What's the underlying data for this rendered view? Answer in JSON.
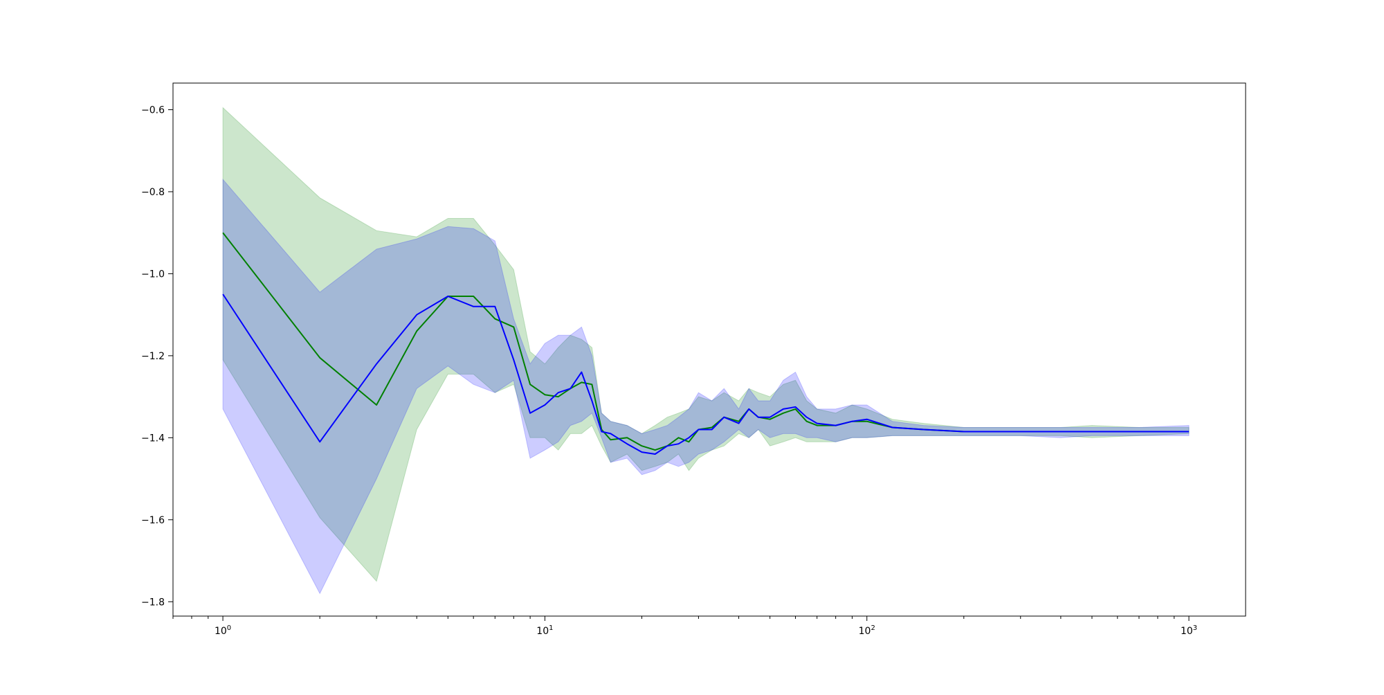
{
  "chart_data": {
    "type": "line",
    "title": "",
    "xlabel": "",
    "ylabel": "",
    "xscale": "log",
    "xlim": [
      0.7,
      1500
    ],
    "ylim": [
      -1.835,
      -0.535
    ],
    "grid": false,
    "legend": "none",
    "x_major_ticks": [
      {
        "value": 1,
        "base": "10",
        "exp": "0"
      },
      {
        "value": 10,
        "base": "10",
        "exp": "1"
      },
      {
        "value": 100,
        "base": "10",
        "exp": "2"
      },
      {
        "value": 1000,
        "base": "10",
        "exp": "3"
      }
    ],
    "y_ticks": [
      {
        "value": -0.6,
        "label": "−0.6"
      },
      {
        "value": -0.8,
        "label": "−0.8"
      },
      {
        "value": -1.0,
        "label": "−1.0"
      },
      {
        "value": -1.2,
        "label": "−1.2"
      },
      {
        "value": -1.4,
        "label": "−1.4"
      },
      {
        "value": -1.6,
        "label": "−1.6"
      },
      {
        "value": -1.8,
        "label": "−1.8"
      }
    ],
    "series": [
      {
        "color": "#008000",
        "band_color": "#008000",
        "band_opacity": 0.2,
        "x": [
          1,
          2,
          3,
          4,
          5,
          6,
          7,
          8,
          9,
          10,
          11,
          12,
          13,
          14,
          15,
          16,
          18,
          20,
          22,
          24,
          26,
          28,
          30,
          33,
          36,
          40,
          43,
          46,
          50,
          55,
          60,
          65,
          70,
          80,
          90,
          100,
          120,
          150,
          200,
          300,
          400,
          500,
          700,
          1000
        ],
        "y": [
          -0.9,
          -1.205,
          -1.32,
          -1.14,
          -1.055,
          -1.055,
          -1.11,
          -1.13,
          -1.27,
          -1.295,
          -1.3,
          -1.28,
          -1.265,
          -1.27,
          -1.38,
          -1.405,
          -1.4,
          -1.42,
          -1.43,
          -1.42,
          -1.4,
          -1.41,
          -1.38,
          -1.375,
          -1.35,
          -1.36,
          -1.33,
          -1.35,
          -1.355,
          -1.34,
          -1.33,
          -1.36,
          -1.37,
          -1.37,
          -1.36,
          -1.36,
          -1.375,
          -1.38,
          -1.385,
          -1.385,
          -1.385,
          -1.385,
          -1.385,
          -1.385
        ],
        "lower": [
          -1.21,
          -1.595,
          -1.75,
          -1.38,
          -1.245,
          -1.245,
          -1.29,
          -1.27,
          -1.4,
          -1.4,
          -1.43,
          -1.39,
          -1.39,
          -1.37,
          -1.42,
          -1.46,
          -1.44,
          -1.48,
          -1.47,
          -1.46,
          -1.44,
          -1.48,
          -1.45,
          -1.43,
          -1.42,
          -1.39,
          -1.4,
          -1.38,
          -1.42,
          -1.41,
          -1.4,
          -1.41,
          -1.41,
          -1.41,
          -1.4,
          -1.4,
          -1.395,
          -1.395,
          -1.395,
          -1.395,
          -1.395,
          -1.4,
          -1.395,
          -1.39
        ],
        "upper": [
          -0.595,
          -0.815,
          -0.895,
          -0.91,
          -0.865,
          -0.865,
          -0.93,
          -0.99,
          -1.19,
          -1.22,
          -1.18,
          -1.15,
          -1.16,
          -1.18,
          -1.34,
          -1.36,
          -1.37,
          -1.39,
          -1.37,
          -1.35,
          -1.34,
          -1.33,
          -1.3,
          -1.31,
          -1.29,
          -1.31,
          -1.28,
          -1.29,
          -1.3,
          -1.27,
          -1.26,
          -1.31,
          -1.33,
          -1.34,
          -1.32,
          -1.33,
          -1.355,
          -1.365,
          -1.375,
          -1.375,
          -1.375,
          -1.37,
          -1.375,
          -1.375
        ]
      },
      {
        "color": "#0000ff",
        "band_color": "#0000ff",
        "band_opacity": 0.2,
        "x": [
          1,
          2,
          3,
          4,
          5,
          6,
          7,
          8,
          9,
          10,
          11,
          12,
          13,
          14,
          15,
          16,
          18,
          20,
          22,
          24,
          26,
          28,
          30,
          33,
          36,
          40,
          43,
          46,
          50,
          55,
          60,
          65,
          70,
          80,
          90,
          100,
          120,
          150,
          200,
          300,
          400,
          500,
          700,
          1000
        ],
        "y": [
          -1.05,
          -1.41,
          -1.22,
          -1.1,
          -1.055,
          -1.08,
          -1.08,
          -1.21,
          -1.34,
          -1.32,
          -1.29,
          -1.28,
          -1.24,
          -1.31,
          -1.385,
          -1.39,
          -1.415,
          -1.435,
          -1.44,
          -1.42,
          -1.415,
          -1.4,
          -1.38,
          -1.38,
          -1.35,
          -1.365,
          -1.33,
          -1.35,
          -1.35,
          -1.33,
          -1.325,
          -1.35,
          -1.365,
          -1.37,
          -1.36,
          -1.355,
          -1.375,
          -1.38,
          -1.385,
          -1.385,
          -1.385,
          -1.385,
          -1.385,
          -1.385
        ],
        "lower": [
          -1.33,
          -1.78,
          -1.5,
          -1.28,
          -1.225,
          -1.27,
          -1.29,
          -1.26,
          -1.45,
          -1.43,
          -1.41,
          -1.37,
          -1.36,
          -1.34,
          -1.4,
          -1.46,
          -1.45,
          -1.49,
          -1.48,
          -1.46,
          -1.47,
          -1.46,
          -1.44,
          -1.43,
          -1.41,
          -1.38,
          -1.4,
          -1.38,
          -1.4,
          -1.39,
          -1.39,
          -1.4,
          -1.4,
          -1.41,
          -1.4,
          -1.4,
          -1.395,
          -1.395,
          -1.395,
          -1.395,
          -1.4,
          -1.395,
          -1.395,
          -1.395
        ],
        "upper": [
          -0.77,
          -1.045,
          -0.94,
          -0.915,
          -0.885,
          -0.89,
          -0.92,
          -1.11,
          -1.22,
          -1.17,
          -1.15,
          -1.15,
          -1.13,
          -1.2,
          -1.34,
          -1.36,
          -1.37,
          -1.39,
          -1.38,
          -1.37,
          -1.35,
          -1.33,
          -1.29,
          -1.31,
          -1.28,
          -1.33,
          -1.28,
          -1.31,
          -1.31,
          -1.26,
          -1.24,
          -1.3,
          -1.33,
          -1.33,
          -1.32,
          -1.32,
          -1.36,
          -1.37,
          -1.375,
          -1.375,
          -1.375,
          -1.375,
          -1.375,
          -1.37
        ]
      }
    ]
  }
}
